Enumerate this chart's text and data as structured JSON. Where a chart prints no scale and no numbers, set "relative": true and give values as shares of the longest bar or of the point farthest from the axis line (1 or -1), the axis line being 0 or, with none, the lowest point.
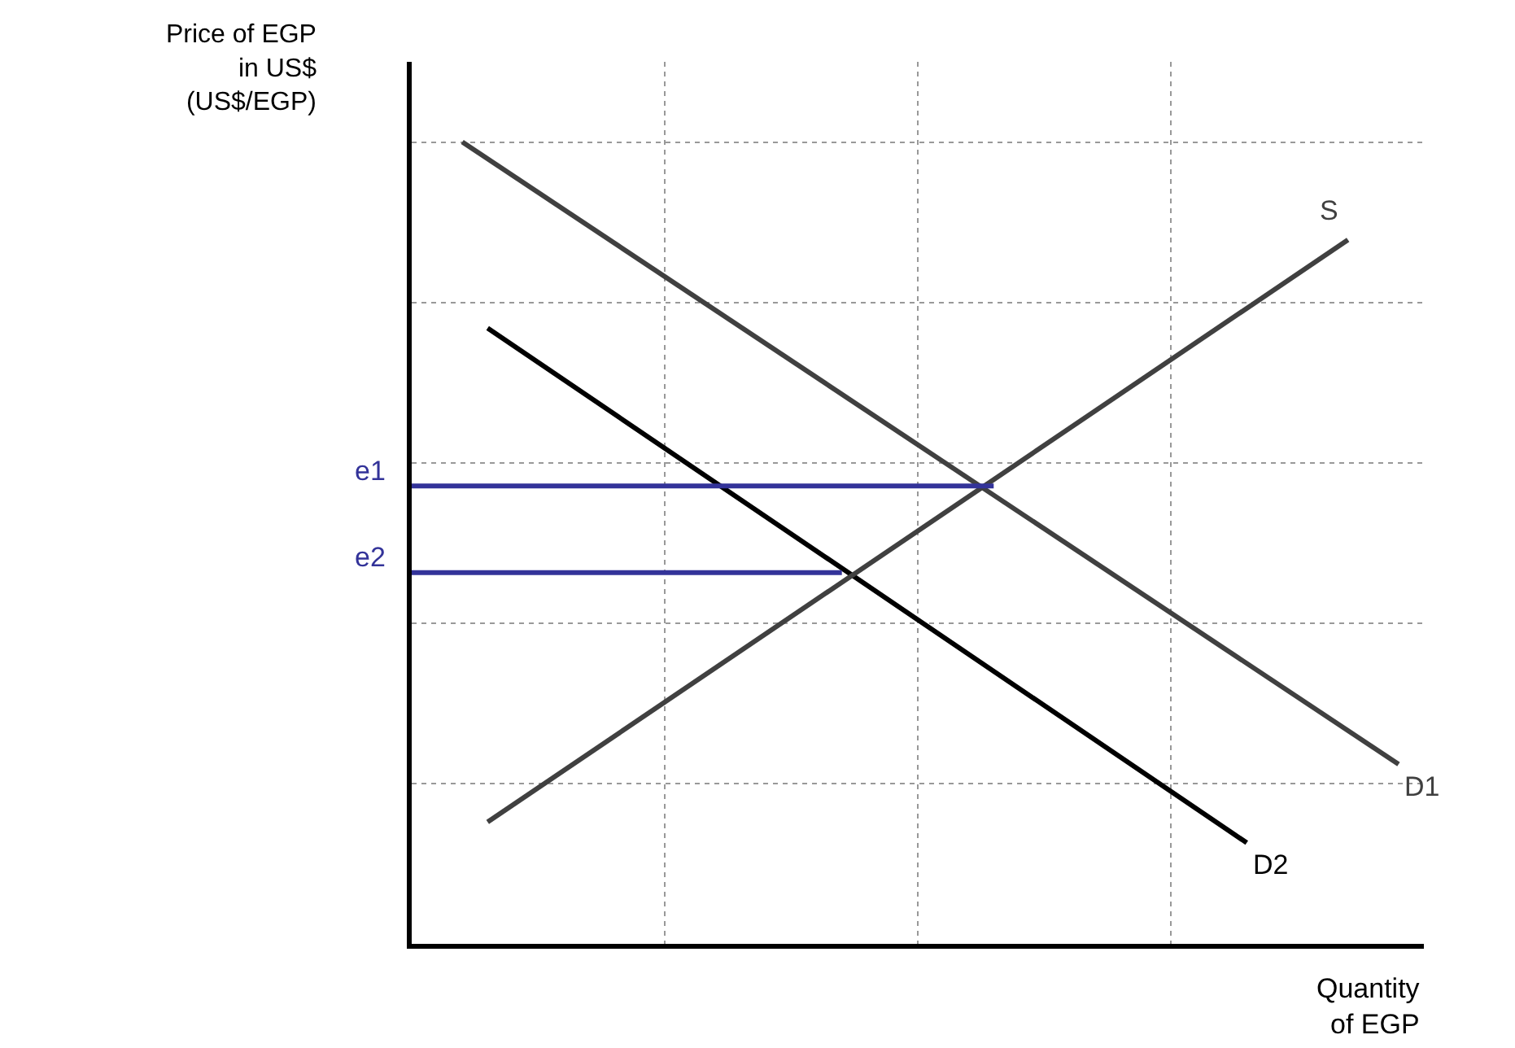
{
  "chart_data": {
    "type": "line",
    "relative": true,
    "xlabel": "Quantity\nof EGP",
    "ylabel": "Price of EGP\nin US$\n(US$/EGP)",
    "grid": true,
    "legend": false,
    "marker": "none",
    "line_style": "solid",
    "categories": [
      null,
      null,
      null,
      null,
      null,
      null,
      null,
      null,
      null,
      null,
      null,
      null,
      null,
      null,
      null,
      null,
      null,
      null,
      null,
      null,
      null,
      null,
      null,
      null,
      null,
      null,
      null,
      null,
      null,
      null,
      null,
      null,
      null,
      null,
      null,
      null,
      null,
      null,
      null,
      null,
      null
    ],
    "series": [
      {
        "name": "D1",
        "color": "#404040",
        "values": [
          null,
          null,
          1.0,
          null,
          null,
          null,
          null,
          null,
          null,
          null,
          null,
          null,
          null,
          null,
          null,
          null,
          null,
          null,
          null,
          null,
          null,
          null,
          null,
          null,
          null,
          null,
          null,
          null,
          null,
          null,
          null,
          null,
          null,
          null,
          null,
          null,
          null,
          null,
          null,
          0.224,
          null
        ]
      },
      {
        "name": "D2",
        "color": "#000000",
        "values": [
          null,
          null,
          null,
          0.768,
          null,
          null,
          null,
          null,
          null,
          null,
          null,
          null,
          null,
          null,
          null,
          null,
          null,
          null,
          null,
          null,
          null,
          null,
          null,
          null,
          null,
          null,
          null,
          null,
          null,
          null,
          null,
          null,
          null,
          0.126,
          null,
          null,
          null,
          null,
          null,
          null,
          null
        ]
      },
      {
        "name": "S",
        "color": "#404040",
        "values": [
          null,
          null,
          null,
          0.152,
          null,
          null,
          null,
          null,
          null,
          null,
          null,
          null,
          null,
          null,
          null,
          null,
          null,
          null,
          null,
          null,
          null,
          null,
          null,
          null,
          null,
          null,
          null,
          null,
          null,
          null,
          null,
          null,
          null,
          null,
          null,
          null,
          null,
          0.878,
          null,
          null,
          null
        ]
      },
      {
        "name": "e1",
        "color": "#333399",
        "values": [
          0.571,
          null,
          null,
          null,
          null,
          null,
          null,
          null,
          null,
          null,
          null,
          null,
          null,
          null,
          null,
          null,
          null,
          null,
          null,
          null,
          null,
          null,
          null,
          0.571,
          null,
          null,
          null,
          null,
          null,
          null,
          null,
          null,
          null,
          null,
          null,
          null,
          null,
          null,
          null,
          null,
          null
        ]
      },
      {
        "name": "e2",
        "color": "#333399",
        "values": [
          0.463,
          null,
          null,
          null,
          null,
          null,
          null,
          null,
          null,
          null,
          null,
          null,
          null,
          null,
          null,
          null,
          null,
          0.463,
          null,
          null,
          null,
          null,
          null,
          null,
          null,
          null,
          null,
          null,
          null,
          null,
          null,
          null,
          null,
          null,
          null,
          null,
          null,
          null,
          null,
          null,
          null
        ]
      }
    ]
  }
}
